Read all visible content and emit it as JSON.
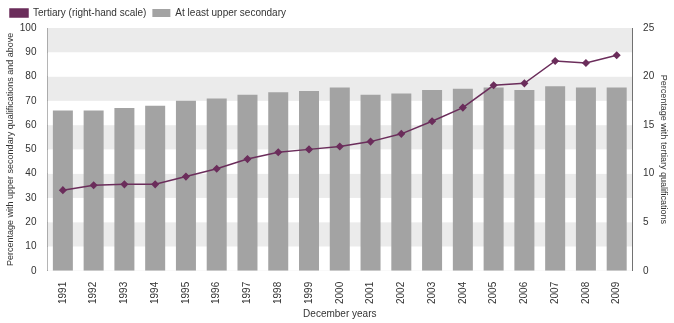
{
  "chart_data": {
    "type": "bar",
    "x_label": "December years",
    "y_label": "Percentage with upper secondary qualifications and above",
    "y2_label": "Percentage with tertiary qualifications",
    "categories": [
      "1991",
      "1992",
      "1993",
      "1994",
      "1995",
      "1996",
      "1997",
      "1998",
      "1999",
      "2000",
      "2001",
      "2002",
      "2003",
      "2004",
      "2005",
      "2006",
      "2007",
      "2008",
      "2009"
    ],
    "series": [
      {
        "name": "Tertiary (right-hand scale)",
        "type": "line",
        "axis": "y2",
        "color": "#6b2d5b",
        "marker": "diamond",
        "line_style": "solid",
        "values": [
          8.3,
          8.8,
          8.9,
          8.9,
          9.7,
          10.5,
          11.5,
          12.2,
          12.5,
          12.8,
          13.3,
          14.1,
          15.4,
          16.8,
          19.1,
          19.3,
          21.6,
          21.4,
          22.2
        ]
      },
      {
        "name": "At least upper secondary",
        "type": "bar",
        "color": "#a3a3a3",
        "values": [
          66,
          66,
          67,
          68,
          70,
          71,
          72.5,
          73.5,
          74,
          75.5,
          72.5,
          73,
          74.5,
          75,
          75.5,
          74.5,
          76,
          75.5,
          75.5
        ]
      }
    ],
    "ylim": [
      0,
      100
    ],
    "yticks": [
      0,
      10,
      20,
      30,
      40,
      50,
      60,
      70,
      80,
      90,
      100
    ],
    "y2lim": [
      0,
      25
    ],
    "y2ticks": [
      0,
      5,
      10,
      15,
      20,
      25
    ],
    "grid": true,
    "legend": "top-left"
  }
}
